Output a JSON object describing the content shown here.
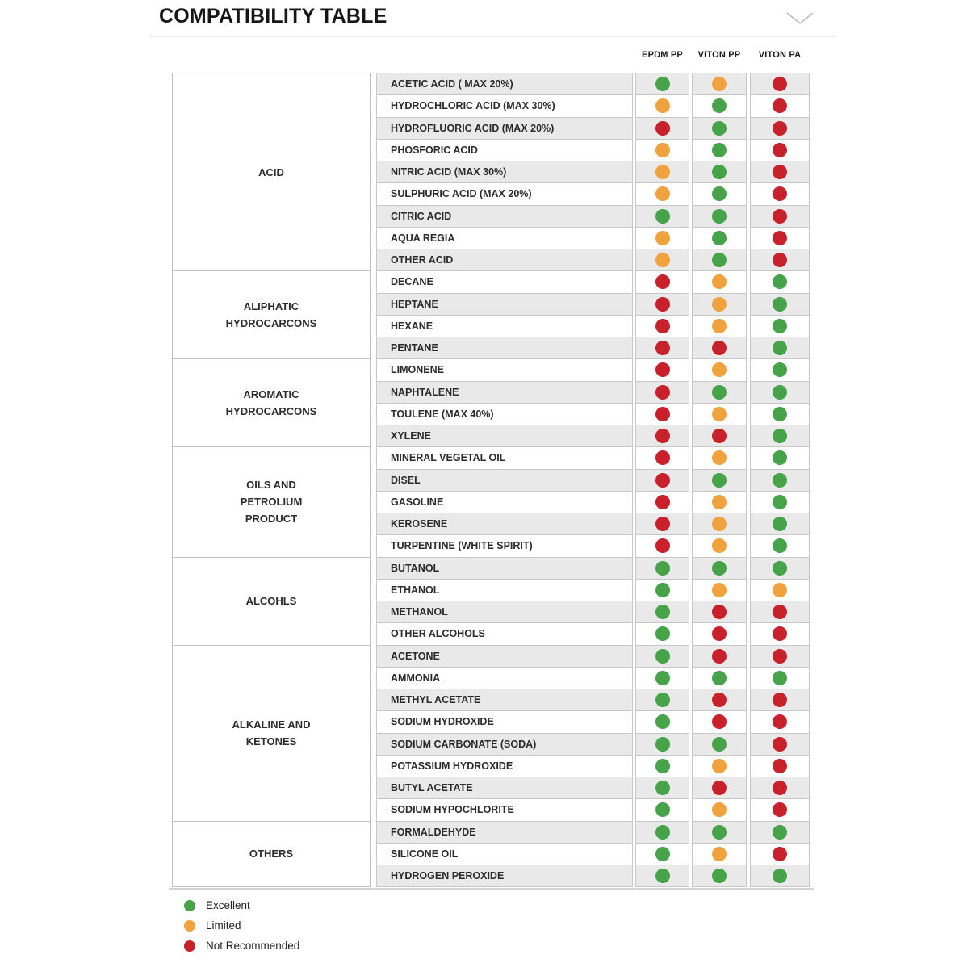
{
  "title": "COMPATIBILITY TABLE",
  "columns": [
    "EPDM PP",
    "VITON PP",
    "VITON PA"
  ],
  "status_colors": {
    "excellent": "#46A34A",
    "limited": "#F0A23E",
    "not_recommended": "#C9212B"
  },
  "row_stripe_colors": {
    "odd": "#E9E9E9",
    "even": "#FFFFFF"
  },
  "sections": [
    {
      "category_lines": [
        "ACID"
      ],
      "rows": [
        {
          "name": "ACETIC ACID ( MAX 20%)",
          "ratings": [
            "excellent",
            "limited",
            "not_recommended"
          ]
        },
        {
          "name": "HYDROCHLORIC ACID (MAX 30%)",
          "ratings": [
            "limited",
            "excellent",
            "not_recommended"
          ]
        },
        {
          "name": "HYDROFLUORIC ACID (MAX 20%)",
          "ratings": [
            "not_recommended",
            "excellent",
            "not_recommended"
          ]
        },
        {
          "name": "PHOSFORIC ACID",
          "ratings": [
            "limited",
            "excellent",
            "not_recommended"
          ]
        },
        {
          "name": "NITRIC ACID (MAX 30%)",
          "ratings": [
            "limited",
            "excellent",
            "not_recommended"
          ]
        },
        {
          "name": "SULPHURIC ACID (MAX 20%)",
          "ratings": [
            "limited",
            "excellent",
            "not_recommended"
          ]
        },
        {
          "name": "CITRIC ACID",
          "ratings": [
            "excellent",
            "excellent",
            "not_recommended"
          ]
        },
        {
          "name": "AQUA REGIA",
          "ratings": [
            "limited",
            "excellent",
            "not_recommended"
          ]
        },
        {
          "name": "OTHER ACID",
          "ratings": [
            "limited",
            "excellent",
            "not_recommended"
          ]
        }
      ]
    },
    {
      "category_lines": [
        "ALIPHATIC",
        "HYDROCARCONS"
      ],
      "rows": [
        {
          "name": "DECANE",
          "ratings": [
            "not_recommended",
            "limited",
            "excellent"
          ]
        },
        {
          "name": "HEPTANE",
          "ratings": [
            "not_recommended",
            "limited",
            "excellent"
          ]
        },
        {
          "name": "HEXANE",
          "ratings": [
            "not_recommended",
            "limited",
            "excellent"
          ]
        },
        {
          "name": "PENTANE",
          "ratings": [
            "not_recommended",
            "not_recommended",
            "excellent"
          ]
        }
      ]
    },
    {
      "category_lines": [
        "AROMATIC",
        "HYDROCARCONS"
      ],
      "rows": [
        {
          "name": "LIMONENE",
          "ratings": [
            "not_recommended",
            "limited",
            "excellent"
          ]
        },
        {
          "name": "NAPHTALENE",
          "ratings": [
            "not_recommended",
            "excellent",
            "excellent"
          ]
        },
        {
          "name": "TOULENE (MAX 40%)",
          "ratings": [
            "not_recommended",
            "limited",
            "excellent"
          ]
        },
        {
          "name": "XYLENE",
          "ratings": [
            "not_recommended",
            "not_recommended",
            "excellent"
          ]
        }
      ]
    },
    {
      "category_lines": [
        "OILS AND",
        "PETROLIUM",
        "PRODUCT"
      ],
      "rows": [
        {
          "name": "MINERAL VEGETAL OIL",
          "ratings": [
            "not_recommended",
            "limited",
            "excellent"
          ]
        },
        {
          "name": "DISEL",
          "ratings": [
            "not_recommended",
            "excellent",
            "excellent"
          ]
        },
        {
          "name": "GASOLINE",
          "ratings": [
            "not_recommended",
            "limited",
            "excellent"
          ]
        },
        {
          "name": "KEROSENE",
          "ratings": [
            "not_recommended",
            "limited",
            "excellent"
          ]
        },
        {
          "name": "TURPENTINE (WHITE SPIRIT)",
          "ratings": [
            "not_recommended",
            "limited",
            "excellent"
          ]
        }
      ]
    },
    {
      "category_lines": [
        "ALCOHLS"
      ],
      "rows": [
        {
          "name": "BUTANOL",
          "ratings": [
            "excellent",
            "excellent",
            "excellent"
          ]
        },
        {
          "name": "ETHANOL",
          "ratings": [
            "excellent",
            "limited",
            "limited"
          ]
        },
        {
          "name": "METHANOL",
          "ratings": [
            "excellent",
            "not_recommended",
            "not_recommended"
          ]
        },
        {
          "name": "OTHER ALCOHOLS",
          "ratings": [
            "excellent",
            "not_recommended",
            "not_recommended"
          ]
        }
      ]
    },
    {
      "category_lines": [
        "ALKALINE AND",
        "KETONES"
      ],
      "rows": [
        {
          "name": "ACETONE",
          "ratings": [
            "excellent",
            "not_recommended",
            "not_recommended"
          ]
        },
        {
          "name": "AMMONIA",
          "ratings": [
            "excellent",
            "excellent",
            "excellent"
          ]
        },
        {
          "name": "METHYL ACETATE",
          "ratings": [
            "excellent",
            "not_recommended",
            "not_recommended"
          ]
        },
        {
          "name": "SODIUM HYDROXIDE",
          "ratings": [
            "excellent",
            "not_recommended",
            "not_recommended"
          ]
        },
        {
          "name": "SODIUM CARBONATE (SODA)",
          "ratings": [
            "excellent",
            "excellent",
            "not_recommended"
          ]
        },
        {
          "name": "POTASSIUM HYDROXIDE",
          "ratings": [
            "excellent",
            "limited",
            "not_recommended"
          ]
        },
        {
          "name": "BUTYL ACETATE",
          "ratings": [
            "excellent",
            "not_recommended",
            "not_recommended"
          ]
        },
        {
          "name": "SODIUM HYPOCHLORITE",
          "ratings": [
            "excellent",
            "limited",
            "not_recommended"
          ]
        }
      ]
    },
    {
      "category_lines": [
        "OTHERS"
      ],
      "rows": [
        {
          "name": "FORMALDEHYDE",
          "ratings": [
            "excellent",
            "excellent",
            "excellent"
          ]
        },
        {
          "name": "SILICONE OIL",
          "ratings": [
            "excellent",
            "limited",
            "not_recommended"
          ]
        },
        {
          "name": "HYDROGEN PEROXIDE",
          "ratings": [
            "excellent",
            "excellent",
            "excellent"
          ]
        }
      ]
    }
  ],
  "legend": [
    {
      "label": "Excellent",
      "status": "excellent"
    },
    {
      "label": "Limited",
      "status": "limited"
    },
    {
      "label": "Not Recommended",
      "status": "not_recommended"
    }
  ]
}
